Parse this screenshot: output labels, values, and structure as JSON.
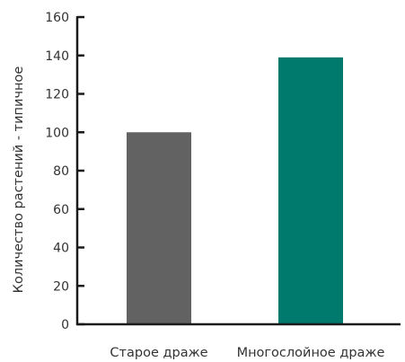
{
  "chart_data": {
    "type": "bar",
    "title": "",
    "xlabel": "",
    "ylabel": "Количество растений - типичное",
    "categories": [
      "Старое драже",
      "Многослойное драже"
    ],
    "values": [
      100,
      139
    ],
    "bar_colors": [
      "#626262",
      "#007a6c"
    ],
    "ylim": [
      0,
      160
    ],
    "yticks": [
      0,
      20,
      40,
      60,
      80,
      100,
      120,
      140,
      160
    ],
    "grid": false,
    "legend": "none"
  },
  "colors": {
    "axis": "#1a1a1a",
    "text": "#333333"
  }
}
